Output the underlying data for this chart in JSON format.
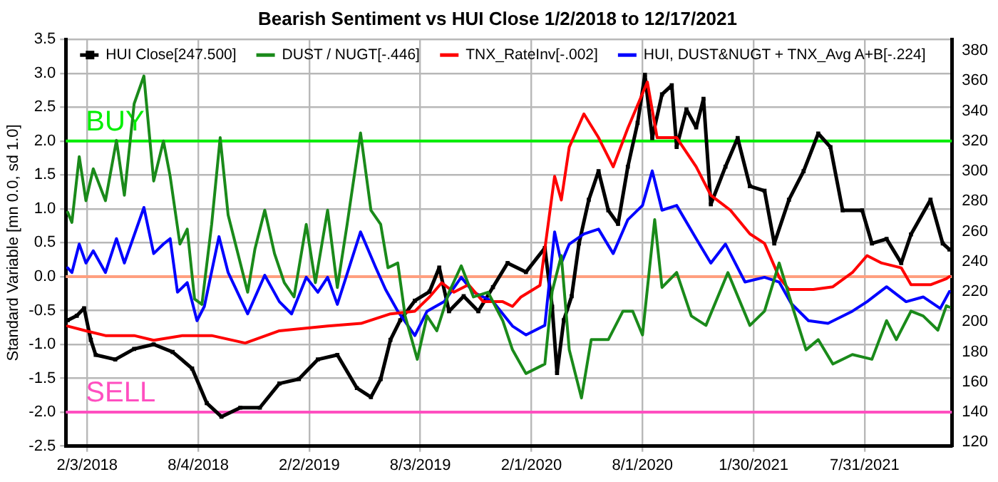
{
  "chart_data": {
    "type": "line",
    "title": "Bearish Sentiment vs HUI Close 1/2/2018 to 12/17/2021",
    "ylabel": "Standard Variable [mn 0.0, sd 1.0]",
    "xlim": [
      "2017-12-30",
      "2021-12-21"
    ],
    "xticks": [
      {
        "value": "2018-02-03",
        "label": "2/3/2018"
      },
      {
        "value": "2018-08-04",
        "label": "8/4/2018"
      },
      {
        "value": "2019-02-02",
        "label": "2/2/2019"
      },
      {
        "value": "2019-08-03",
        "label": "8/3/2019"
      },
      {
        "value": "2020-02-01",
        "label": "2/1/2020"
      },
      {
        "value": "2020-08-01",
        "label": "8/1/2020"
      },
      {
        "value": "2021-01-30",
        "label": "1/30/2021"
      },
      {
        "value": "2021-07-31",
        "label": "7/31/2021"
      }
    ],
    "ylim": [
      -2.5,
      3.5
    ],
    "yticks": [
      {
        "value": -2.5,
        "label": "-2.5"
      },
      {
        "value": -2,
        "label": "-2.0"
      },
      {
        "value": -1.5,
        "label": "-1.5"
      },
      {
        "value": -1,
        "label": "-1.0"
      },
      {
        "value": -0.5,
        "label": "-0.5"
      },
      {
        "value": 0,
        "label": "0.0"
      },
      {
        "value": 0.5,
        "label": "0.5"
      },
      {
        "value": 1,
        "label": "1.0"
      },
      {
        "value": 1.5,
        "label": "1.5"
      },
      {
        "value": 2,
        "label": "2.0"
      },
      {
        "value": 2.5,
        "label": "2.5"
      },
      {
        "value": 3,
        "label": "3.0"
      },
      {
        "value": 3.5,
        "label": "3.5"
      }
    ],
    "y2lim": [
      117.5,
      387.5
    ],
    "y2ticks": [
      120,
      140,
      160,
      180,
      200,
      220,
      240,
      260,
      280,
      300,
      320,
      340,
      360,
      380
    ],
    "grid": true,
    "legend": "top left",
    "line_style": "solid",
    "ref_lines": [
      {
        "axis": "y",
        "value": 2,
        "label": "BUY",
        "color": "#00ee00"
      },
      {
        "axis": "y",
        "value": 0,
        "color": "#ff9f7f"
      },
      {
        "axis": "y",
        "value": -2,
        "label": "SELL",
        "color": "#ff4fc0"
      }
    ],
    "series": [
      {
        "name": "HUI Close[247.500]",
        "color": "#000000",
        "axis": "y2",
        "marker": "square",
        "x": [
          "2018-01-02",
          "2018-01-17",
          "2018-01-29",
          "2018-02-09",
          "2018-02-17",
          "2018-03-21",
          "2018-04-21",
          "2018-05-23",
          "2018-06-23",
          "2018-07-25",
          "2018-08-18",
          "2018-09-11",
          "2018-10-12",
          "2018-11-13",
          "2018-12-15",
          "2019-01-16",
          "2019-02-16",
          "2019-03-20",
          "2019-04-21",
          "2019-05-14",
          "2019-05-30",
          "2019-06-15",
          "2019-07-01",
          "2019-07-25",
          "2019-08-18",
          "2019-09-03",
          "2019-09-19",
          "2019-10-13",
          "2019-11-06",
          "2019-11-30",
          "2019-12-24",
          "2020-01-23",
          "2020-02-23",
          "2020-03-06",
          "2020-03-14",
          "2020-03-25",
          "2020-04-07",
          "2020-04-19",
          "2020-05-05",
          "2020-05-21",
          "2020-06-06",
          "2020-06-22",
          "2020-07-08",
          "2020-07-24",
          "2020-08-05",
          "2020-08-17",
          "2020-09-02",
          "2020-09-18",
          "2020-09-26",
          "2020-10-12",
          "2020-10-28",
          "2020-11-09",
          "2020-11-21",
          "2020-12-15",
          "2021-01-04",
          "2021-01-24",
          "2021-02-17",
          "2021-03-05",
          "2021-03-29",
          "2021-04-22",
          "2021-05-16",
          "2021-06-05",
          "2021-06-25",
          "2021-07-27",
          "2021-08-12",
          "2021-09-05",
          "2021-09-29",
          "2021-10-15",
          "2021-11-16",
          "2021-12-06",
          "2021-12-17"
        ],
        "values": [
          201,
          204,
          209,
          188,
          178,
          175,
          182,
          185,
          180,
          169,
          146,
          137,
          143,
          143,
          159,
          162,
          175,
          178,
          156,
          150,
          162,
          188,
          201,
          214,
          220,
          236,
          207,
          217,
          207,
          223,
          239,
          233,
          249,
          210,
          166,
          201,
          217,
          252,
          281,
          300,
          274,
          265,
          303,
          332,
          364,
          322,
          351,
          357,
          316,
          341,
          329,
          348,
          278,
          303,
          322,
          290,
          287,
          252,
          281,
          300,
          325,
          316,
          274,
          274,
          252,
          255,
          239,
          258,
          281,
          252,
          248
        ]
      },
      {
        "name": "DUST / NUGT[-.446]",
        "color": "#1a8a1a",
        "x": [
          "2018-01-02",
          "2018-01-09",
          "2018-01-21",
          "2018-02-01",
          "2018-02-13",
          "2018-03-05",
          "2018-03-23",
          "2018-04-05",
          "2018-04-21",
          "2018-05-07",
          "2018-05-23",
          "2018-06-08",
          "2018-06-19",
          "2018-07-05",
          "2018-07-17",
          "2018-07-29",
          "2018-08-10",
          "2018-08-26",
          "2018-09-09",
          "2018-09-22",
          "2018-10-08",
          "2018-10-24",
          "2018-11-05",
          "2018-11-21",
          "2018-12-07",
          "2018-12-23",
          "2019-01-08",
          "2019-01-28",
          "2019-02-12",
          "2019-03-04",
          "2019-03-20",
          "2019-04-05",
          "2019-04-27",
          "2019-05-14",
          "2019-05-30",
          "2019-06-11",
          "2019-06-27",
          "2019-07-09",
          "2019-07-29",
          "2019-08-14",
          "2019-08-30",
          "2019-09-19",
          "2019-10-09",
          "2019-10-29",
          "2019-11-22",
          "2019-12-16",
          "2020-01-01",
          "2020-01-23",
          "2020-02-23",
          "2020-03-06",
          "2020-03-21",
          "2020-04-03",
          "2020-04-23",
          "2020-05-09",
          "2020-06-06",
          "2020-06-30",
          "2020-07-16",
          "2020-08-01",
          "2020-08-21",
          "2020-09-02",
          "2020-09-26",
          "2020-10-20",
          "2020-11-13",
          "2020-12-19",
          "2021-01-24",
          "2021-02-17",
          "2021-03-13",
          "2021-04-06",
          "2021-04-26",
          "2021-05-16",
          "2021-06-09",
          "2021-07-11",
          "2021-08-12",
          "2021-09-05",
          "2021-09-21",
          "2021-10-15",
          "2021-11-04",
          "2021-11-28",
          "2021-12-12",
          "2021-12-17"
        ],
        "values": [
          0.95,
          0.8,
          1.77,
          1.12,
          1.59,
          1.12,
          2.01,
          1.2,
          2.55,
          2.96,
          1.41,
          2.0,
          1.48,
          0.48,
          0.7,
          -0.33,
          -0.41,
          0.77,
          2.05,
          0.91,
          0.34,
          -0.23,
          0.41,
          0.98,
          0.34,
          -0.09,
          -0.3,
          0.77,
          -0.09,
          0.98,
          -0.16,
          0.77,
          2.12,
          0.98,
          0.77,
          0.13,
          0.2,
          -0.58,
          -1.22,
          -0.58,
          -0.8,
          -0.23,
          0.16,
          -0.3,
          -0.23,
          -0.65,
          -1.08,
          -1.43,
          -1.29,
          -0.22,
          0.31,
          -1.08,
          -1.79,
          -0.93,
          -0.93,
          -0.51,
          -0.51,
          -0.86,
          0.84,
          -0.16,
          0.06,
          -0.58,
          -0.72,
          0.06,
          -0.72,
          -0.51,
          0.2,
          -0.51,
          -1.08,
          -0.93,
          -1.29,
          -1.15,
          -1.22,
          -0.65,
          -0.93,
          -0.51,
          -0.58,
          -0.79,
          -0.43,
          -0.45
        ]
      },
      {
        "name": "TNX_RateInv[-.002]",
        "color": "#ff0000",
        "x": [
          "2018-01-02",
          "2018-02-01",
          "2018-03-05",
          "2018-04-21",
          "2018-05-23",
          "2018-07-09",
          "2018-08-26",
          "2018-10-20",
          "2018-12-15",
          "2019-03-04",
          "2019-04-28",
          "2019-06-15",
          "2019-07-25",
          "2019-08-18",
          "2019-09-07",
          "2019-09-27",
          "2019-10-21",
          "2019-11-14",
          "2019-12-16",
          "2020-01-01",
          "2020-01-15",
          "2020-02-15",
          "2020-03-10",
          "2020-03-21",
          "2020-04-03",
          "2020-04-27",
          "2020-05-21",
          "2020-06-14",
          "2020-07-08",
          "2020-08-09",
          "2020-08-25",
          "2020-09-26",
          "2020-10-28",
          "2020-11-21",
          "2020-12-23",
          "2021-01-24",
          "2021-02-17",
          "2021-03-13",
          "2021-03-29",
          "2021-05-08",
          "2021-06-09",
          "2021-07-11",
          "2021-08-04",
          "2021-08-28",
          "2021-09-29",
          "2021-10-15",
          "2021-11-16",
          "2021-12-12",
          "2021-12-17"
        ],
        "values": [
          -0.73,
          -0.8,
          -0.87,
          -0.87,
          -0.94,
          -0.87,
          -0.87,
          -0.98,
          -0.8,
          -0.73,
          -0.69,
          -0.55,
          -0.51,
          -0.3,
          -0.09,
          -0.23,
          -0.12,
          -0.37,
          -0.37,
          -0.44,
          -0.3,
          -0.13,
          1.48,
          1.13,
          1.91,
          2.4,
          2.05,
          1.62,
          2.19,
          2.87,
          2.05,
          2.05,
          1.62,
          1.2,
          0.98,
          0.63,
          0.49,
          -0.01,
          -0.19,
          -0.19,
          -0.15,
          0.06,
          0.31,
          0.2,
          0.13,
          -0.12,
          -0.12,
          -0.03,
          0.0
        ]
      },
      {
        "name": "HUI, DUST&NUGT + TNX_Avg A+B[-.224]",
        "color": "#0000ff",
        "x": [
          "2018-01-02",
          "2018-01-09",
          "2018-01-21",
          "2018-02-01",
          "2018-02-13",
          "2018-03-05",
          "2018-03-23",
          "2018-04-05",
          "2018-05-07",
          "2018-05-23",
          "2018-06-08",
          "2018-06-19",
          "2018-07-01",
          "2018-07-17",
          "2018-08-02",
          "2018-08-14",
          "2018-09-07",
          "2018-09-22",
          "2018-10-24",
          "2018-11-21",
          "2018-12-15",
          "2019-01-04",
          "2019-01-28",
          "2019-02-16",
          "2019-03-04",
          "2019-03-20",
          "2019-04-27",
          "2019-05-22",
          "2019-06-07",
          "2019-06-27",
          "2019-07-25",
          "2019-08-14",
          "2019-09-11",
          "2019-10-09",
          "2019-10-29",
          "2019-11-30",
          "2020-01-01",
          "2020-01-23",
          "2020-02-23",
          "2020-03-10",
          "2020-03-21",
          "2020-04-03",
          "2020-04-27",
          "2020-05-21",
          "2020-06-14",
          "2020-07-08",
          "2020-08-01",
          "2020-08-17",
          "2020-09-02",
          "2020-09-26",
          "2020-10-28",
          "2020-11-21",
          "2020-12-15",
          "2021-01-16",
          "2021-02-17",
          "2021-03-13",
          "2021-04-02",
          "2021-04-30",
          "2021-06-01",
          "2021-07-11",
          "2021-08-04",
          "2021-09-05",
          "2021-10-07",
          "2021-11-04",
          "2021-12-02",
          "2021-12-17"
        ],
        "values": [
          0.13,
          0.06,
          0.48,
          0.2,
          0.38,
          0.06,
          0.56,
          0.2,
          1.02,
          0.34,
          0.48,
          0.56,
          -0.23,
          -0.09,
          -0.65,
          -0.44,
          0.59,
          0.06,
          -0.55,
          0.02,
          -0.37,
          -0.55,
          -0.01,
          -0.23,
          -0.01,
          -0.41,
          0.66,
          0.13,
          -0.19,
          -0.51,
          -0.87,
          -0.51,
          -0.37,
          -0.01,
          -0.23,
          -0.37,
          -0.73,
          -0.86,
          -0.72,
          0.66,
          0.2,
          0.48,
          0.63,
          0.7,
          0.34,
          0.84,
          1.05,
          1.56,
          0.98,
          1.05,
          0.56,
          0.2,
          0.48,
          -0.08,
          -0.01,
          -0.08,
          -0.4,
          -0.65,
          -0.69,
          -0.51,
          -0.37,
          -0.15,
          -0.37,
          -0.3,
          -0.47,
          -0.22
        ]
      }
    ]
  }
}
